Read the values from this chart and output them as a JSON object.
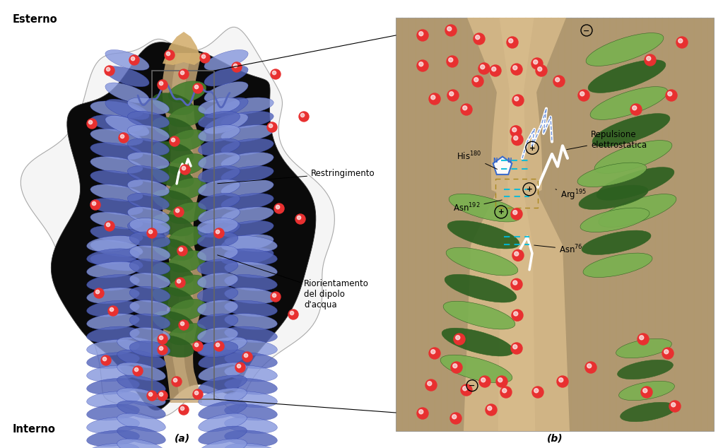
{
  "fig_width": 10.23,
  "fig_height": 6.34,
  "bg": "#ffffff",
  "label_a": "(a)",
  "label_b": "(b)",
  "label_esterno": "Esterno",
  "label_interno": "Interno",
  "helix_blue": "#5566bb",
  "helix_blue_dark": "#2233aa",
  "helix_blue_light": "#8899dd",
  "helix_green_dark": "#2d6020",
  "helix_green_mid": "#4a8030",
  "helix_green_light": "#7ab050",
  "channel_tan": "#c8a878",
  "channel_tan2": "#d4b888",
  "bg_brown": "#b09870",
  "bg_brown2": "#a08860",
  "water_red": "#e83030",
  "water_pink": "#f08080",
  "black_protein": "#0a0a0a",
  "envelope_edge": "#666666",
  "white_struct": "#f0f0f0",
  "blue_struct": "#3366cc",
  "cyan_hbond": "#00bbdd",
  "tan_dashed": "#aa8820"
}
